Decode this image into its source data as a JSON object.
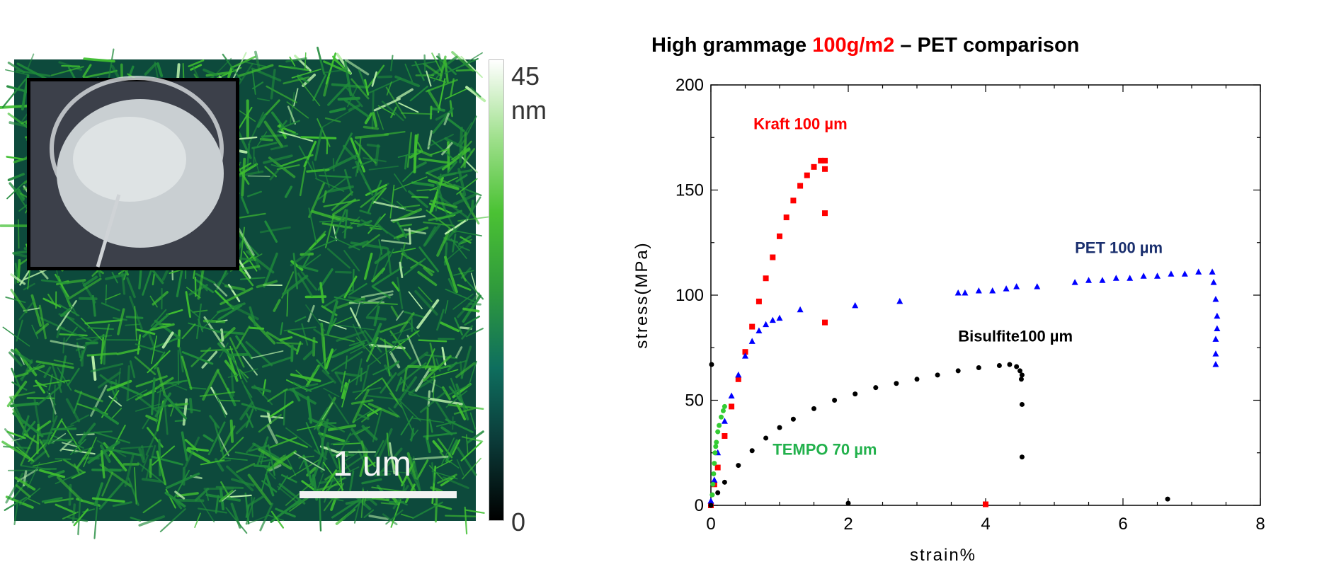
{
  "afm_image": {
    "colorbar": {
      "max_label": "45",
      "unit_label": "nm",
      "min_label": "0",
      "colors": [
        "#000000",
        "#0b3a38",
        "#0e6e5e",
        "#2f9a3c",
        "#4bc234",
        "#9fe08c",
        "#ffffff"
      ]
    },
    "scale_bar_label": "1 um",
    "background_color": "#0d4a3c",
    "fiber_color": "#3fbf30"
  },
  "chart_title": {
    "prefix": "High grammage ",
    "highlight": "100g/m2",
    "suffix": " – PET comparison"
  },
  "chart_data": {
    "type": "scatter",
    "xlabel": "strain%",
    "ylabel": "stress(MPa)",
    "xlim": [
      0,
      8
    ],
    "ylim": [
      0,
      200
    ],
    "xticks": [
      0,
      2,
      4,
      6,
      8
    ],
    "yticks": [
      0,
      50,
      100,
      150,
      200
    ],
    "grid": false,
    "annotations": [
      {
        "text": "Kraft 100 µm",
        "color": "#ff0000",
        "x": 0.62,
        "y": 179
      },
      {
        "text": "PET 100 µm",
        "color": "#1a2f6e",
        "x": 5.3,
        "y": 120
      },
      {
        "text": "Bisulfite100 µm",
        "color": "#000000",
        "x": 3.6,
        "y": 78
      },
      {
        "text": "TEMPO 70 µm",
        "color": "#22b14c",
        "x": 0.9,
        "y": 24
      }
    ],
    "series": [
      {
        "color": "#ff0000",
        "marker": "square",
        "x": [
          0,
          0.05,
          0.1,
          0.2,
          0.3,
          0.4,
          0.5,
          0.6,
          0.7,
          0.8,
          0.9,
          1.0,
          1.1,
          1.2,
          1.3,
          1.4,
          1.5,
          1.6,
          1.66,
          1.66,
          1.66,
          1.66,
          4.0
        ],
        "y": [
          0,
          10,
          18,
          33,
          47,
          60,
          73,
          85,
          97,
          108,
          118,
          128,
          137,
          145,
          152,
          157,
          161,
          164,
          164,
          160,
          139,
          87,
          0.5
        ]
      },
      {
        "color": "#0000ff",
        "marker": "triangle",
        "x": [
          0,
          0.05,
          0.1,
          0.2,
          0.3,
          0.4,
          0.5,
          0.6,
          0.7,
          0.8,
          0.9,
          1.0,
          1.3,
          2.1,
          2.75,
          3.6,
          3.7,
          3.9,
          4.1,
          4.3,
          4.45,
          4.75,
          5.3,
          5.5,
          5.7,
          5.9,
          6.1,
          6.3,
          6.5,
          6.7,
          6.9,
          7.1,
          7.3,
          7.32,
          7.35,
          7.37,
          7.37,
          7.35,
          7.35,
          7.35
        ],
        "y": [
          2,
          12,
          25,
          40,
          52,
          62,
          71,
          78,
          83,
          86,
          88,
          89,
          93,
          95,
          97,
          101,
          101,
          102,
          102,
          103,
          104,
          104,
          106,
          107,
          107,
          108,
          108,
          109,
          109,
          110,
          110,
          111,
          111,
          106,
          98,
          90,
          84,
          79,
          72,
          67
        ]
      },
      {
        "color": "#000000",
        "marker": "circle",
        "x": [
          0,
          0.1,
          0.2,
          0.4,
          0.6,
          0.8,
          1.0,
          1.2,
          1.5,
          1.8,
          2.1,
          2.4,
          2.7,
          3.0,
          3.3,
          3.6,
          3.9,
          4.2,
          4.35,
          4.45,
          4.5,
          4.52,
          4.53,
          4.53,
          4.53,
          2.0,
          6.65,
          0.01
        ],
        "y": [
          0,
          6,
          11,
          19,
          26,
          32,
          37,
          41,
          46,
          50,
          53,
          56,
          58,
          60,
          62,
          64,
          65.5,
          66.5,
          67,
          66,
          64,
          60,
          48,
          23,
          62,
          1,
          3,
          67
        ]
      },
      {
        "color": "#33cc33",
        "marker": "circle",
        "x": [
          0.02,
          0.03,
          0.04,
          0.05,
          0.06,
          0.07,
          0.08,
          0.1,
          0.12,
          0.15,
          0.18,
          0.2
        ],
        "y": [
          5,
          10,
          15,
          20,
          25,
          28,
          30,
          35,
          38,
          42,
          45,
          47
        ]
      }
    ]
  }
}
